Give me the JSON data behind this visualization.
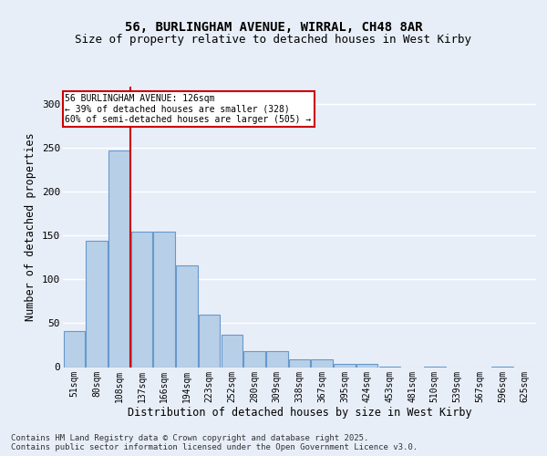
{
  "title1": "56, BURLINGHAM AVENUE, WIRRAL, CH48 8AR",
  "title2": "Size of property relative to detached houses in West Kirby",
  "xlabel": "Distribution of detached houses by size in West Kirby",
  "ylabel": "Number of detached properties",
  "categories": [
    "51sqm",
    "80sqm",
    "108sqm",
    "137sqm",
    "166sqm",
    "194sqm",
    "223sqm",
    "252sqm",
    "280sqm",
    "309sqm",
    "338sqm",
    "367sqm",
    "395sqm",
    "424sqm",
    "453sqm",
    "481sqm",
    "510sqm",
    "539sqm",
    "567sqm",
    "596sqm",
    "625sqm"
  ],
  "values": [
    41,
    144,
    247,
    155,
    155,
    116,
    60,
    37,
    18,
    18,
    9,
    9,
    4,
    4,
    1,
    0,
    1,
    0,
    0,
    1,
    0
  ],
  "bar_color": "#b8cfe8",
  "bar_edge_color": "#6699cc",
  "vline_x": 2.5,
  "vline_color": "#cc0000",
  "annotation_text": "56 BURLINGHAM AVENUE: 126sqm\n← 39% of detached houses are smaller (328)\n60% of semi-detached houses are larger (505) →",
  "annotation_box_color": "white",
  "annotation_box_edge": "#cc0000",
  "ylim": [
    0,
    320
  ],
  "yticks": [
    0,
    50,
    100,
    150,
    200,
    250,
    300
  ],
  "background_color": "#e8eef8",
  "grid_color": "white",
  "footer_line1": "Contains HM Land Registry data © Crown copyright and database right 2025.",
  "footer_line2": "Contains public sector information licensed under the Open Government Licence v3.0.",
  "title1_fontsize": 10,
  "title2_fontsize": 9,
  "tick_fontsize": 7,
  "label_fontsize": 8.5,
  "footer_fontsize": 6.5
}
